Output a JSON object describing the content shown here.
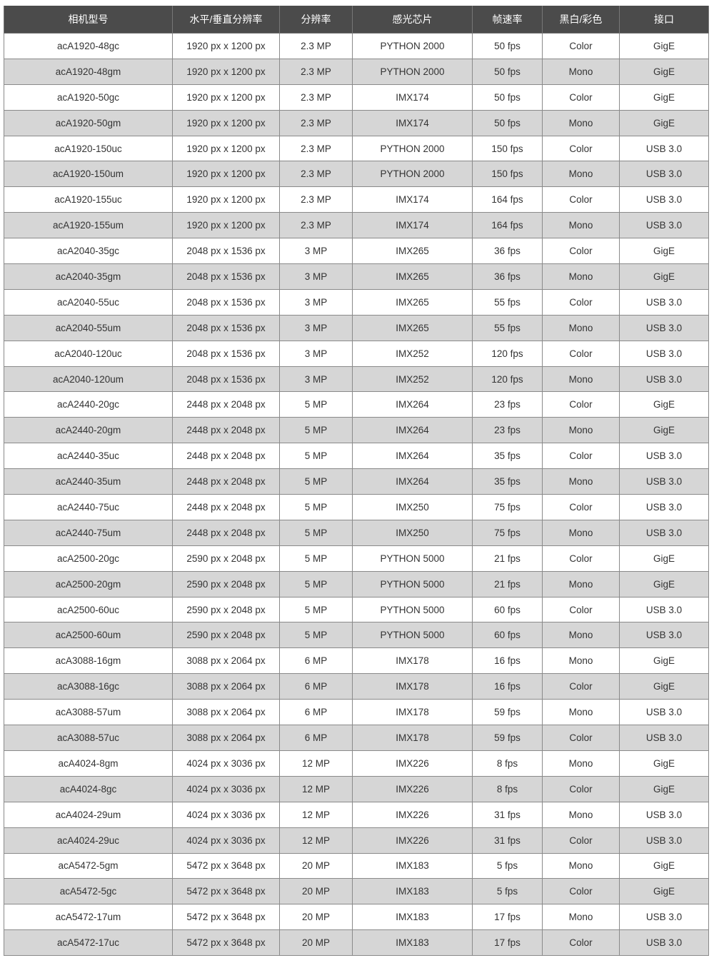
{
  "colors": {
    "header_bg": "#4b4b4b",
    "stripe": "#d6d6d6"
  },
  "columns": [
    "相机型号",
    "水平/垂直分辨率",
    "分辨率",
    "感光芯片",
    "帧速率",
    "黑白/彩色",
    "接口"
  ],
  "rows": [
    [
      "acA1920-48gc",
      "1920 px x 1200 px",
      "2.3 MP",
      "PYTHON 2000",
      "50 fps",
      "Color",
      "GigE"
    ],
    [
      "acA1920-48gm",
      "1920 px x 1200 px",
      "2.3 MP",
      "PYTHON 2000",
      "50 fps",
      "Mono",
      "GigE"
    ],
    [
      "acA1920-50gc",
      "1920 px x 1200 px",
      "2.3 MP",
      "IMX174",
      "50 fps",
      "Color",
      "GigE"
    ],
    [
      "acA1920-50gm",
      "1920 px x 1200 px",
      "2.3 MP",
      "IMX174",
      "50 fps",
      "Mono",
      "GigE"
    ],
    [
      "acA1920-150uc",
      "1920 px x 1200 px",
      "2.3 MP",
      "PYTHON 2000",
      "150 fps",
      "Color",
      "USB 3.0"
    ],
    [
      "acA1920-150um",
      "1920 px x 1200 px",
      "2.3 MP",
      "PYTHON 2000",
      "150 fps",
      "Mono",
      "USB 3.0"
    ],
    [
      "acA1920-155uc",
      "1920 px x 1200 px",
      "2.3 MP",
      "IMX174",
      "164 fps",
      "Color",
      "USB 3.0"
    ],
    [
      "acA1920-155um",
      "1920 px x 1200 px",
      "2.3 MP",
      "IMX174",
      "164 fps",
      "Mono",
      "USB 3.0"
    ],
    [
      "acA2040-35gc",
      "2048 px x 1536 px",
      "3 MP",
      "IMX265",
      "36 fps",
      "Color",
      "GigE"
    ],
    [
      "acA2040-35gm",
      "2048 px x 1536 px",
      "3 MP",
      "IMX265",
      "36 fps",
      "Mono",
      "GigE"
    ],
    [
      "acA2040-55uc",
      "2048 px x 1536 px",
      "3 MP",
      "IMX265",
      "55 fps",
      "Color",
      "USB 3.0"
    ],
    [
      "acA2040-55um",
      "2048 px x 1536 px",
      "3 MP",
      "IMX265",
      "55 fps",
      "Mono",
      "USB 3.0"
    ],
    [
      "acA2040-120uc",
      "2048 px x 1536 px",
      "3 MP",
      "IMX252",
      "120 fps",
      "Color",
      "USB 3.0"
    ],
    [
      "acA2040-120um",
      "2048 px x 1536 px",
      "3 MP",
      "IMX252",
      "120 fps",
      "Mono",
      "USB 3.0"
    ],
    [
      "acA2440-20gc",
      "2448 px x 2048 px",
      "5 MP",
      "IMX264",
      "23 fps",
      "Color",
      "GigE"
    ],
    [
      "acA2440-20gm",
      "2448 px x 2048 px",
      "5 MP",
      "IMX264",
      "23 fps",
      "Mono",
      "GigE"
    ],
    [
      "acA2440-35uc",
      "2448 px x 2048 px",
      "5 MP",
      "IMX264",
      "35 fps",
      "Color",
      "USB 3.0"
    ],
    [
      "acA2440-35um",
      "2448 px x 2048 px",
      "5 MP",
      "IMX264",
      "35 fps",
      "Mono",
      "USB 3.0"
    ],
    [
      "acA2440-75uc",
      "2448 px x 2048 px",
      "5 MP",
      "IMX250",
      "75 fps",
      "Color",
      "USB 3.0"
    ],
    [
      "acA2440-75um",
      "2448 px x 2048 px",
      "5 MP",
      "IMX250",
      "75 fps",
      "Mono",
      "USB 3.0"
    ],
    [
      "acA2500-20gc",
      "2590 px x 2048 px",
      "5 MP",
      "PYTHON 5000",
      "21 fps",
      "Color",
      "GigE"
    ],
    [
      "acA2500-20gm",
      "2590 px x 2048 px",
      "5 MP",
      "PYTHON 5000",
      "21 fps",
      "Mono",
      "GigE"
    ],
    [
      "acA2500-60uc",
      "2590 px x 2048 px",
      "5 MP",
      "PYTHON 5000",
      "60 fps",
      "Color",
      "USB 3.0"
    ],
    [
      "acA2500-60um",
      "2590 px x 2048 px",
      "5 MP",
      "PYTHON 5000",
      "60 fps",
      "Mono",
      "USB 3.0"
    ],
    [
      "acA3088-16gm",
      "3088 px x 2064 px",
      "6 MP",
      "IMX178",
      "16 fps",
      "Mono",
      "GigE"
    ],
    [
      "acA3088-16gc",
      "3088 px x 2064 px",
      "6 MP",
      "IMX178",
      "16 fps",
      "Color",
      "GigE"
    ],
    [
      "acA3088-57um",
      "3088 px x 2064 px",
      "6 MP",
      "IMX178",
      "59 fps",
      "Mono",
      "USB 3.0"
    ],
    [
      "acA3088-57uc",
      "3088 px x 2064 px",
      "6 MP",
      "IMX178",
      "59 fps",
      "Color",
      "USB 3.0"
    ],
    [
      "acA4024-8gm",
      "4024 px x 3036 px",
      "12 MP",
      "IMX226",
      "8 fps",
      "Mono",
      "GigE"
    ],
    [
      "acA4024-8gc",
      "4024 px x 3036 px",
      "12 MP",
      "IMX226",
      "8 fps",
      "Color",
      "GigE"
    ],
    [
      "acA4024-29um",
      "4024 px x 3036 px",
      "12 MP",
      "IMX226",
      "31 fps",
      "Mono",
      "USB 3.0"
    ],
    [
      "acA4024-29uc",
      "4024 px x 3036 px",
      "12 MP",
      "IMX226",
      "31 fps",
      "Color",
      "USB 3.0"
    ],
    [
      "acA5472-5gm",
      "5472 px x 3648 px",
      "20 MP",
      "IMX183",
      "5 fps",
      "Mono",
      "GigE"
    ],
    [
      "acA5472-5gc",
      "5472 px x 3648 px",
      "20 MP",
      "IMX183",
      "5 fps",
      "Color",
      "GigE"
    ],
    [
      "acA5472-17um",
      "5472 px x 3648 px",
      "20 MP",
      "IMX183",
      "17 fps",
      "Mono",
      "USB 3.0"
    ],
    [
      "acA5472-17uc",
      "5472 px x 3648 px",
      "20 MP",
      "IMX183",
      "17 fps",
      "Color",
      "USB 3.0"
    ]
  ]
}
